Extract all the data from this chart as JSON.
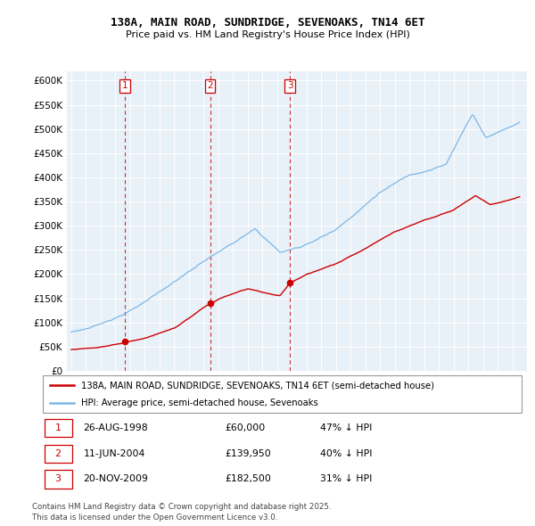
{
  "title_line1": "138A, MAIN ROAD, SUNDRIDGE, SEVENOAKS, TN14 6ET",
  "title_line2": "Price paid vs. HM Land Registry's House Price Index (HPI)",
  "ylabel_ticks": [
    "£0",
    "£50K",
    "£100K",
    "£150K",
    "£200K",
    "£250K",
    "£300K",
    "£350K",
    "£400K",
    "£450K",
    "£500K",
    "£550K",
    "£600K"
  ],
  "ylim": [
    0,
    620000
  ],
  "ytick_vals": [
    0,
    50000,
    100000,
    150000,
    200000,
    250000,
    300000,
    350000,
    400000,
    450000,
    500000,
    550000,
    600000
  ],
  "hpi_color": "#7ab8e8",
  "price_color": "#cc0000",
  "transactions": [
    {
      "num": 1,
      "date_dec": 1998.647,
      "price": 60000
    },
    {
      "num": 2,
      "date_dec": 2004.44,
      "price": 139950
    },
    {
      "num": 3,
      "date_dec": 2009.89,
      "price": 182500
    }
  ],
  "legend_line1": "138A, MAIN ROAD, SUNDRIDGE, SEVENOAKS, TN14 6ET (semi-detached house)",
  "legend_line2": "HPI: Average price, semi-detached house, Sevenoaks",
  "footnote": "Contains HM Land Registry data © Crown copyright and database right 2025.\nThis data is licensed under the Open Government Licence v3.0.",
  "table_rows": [
    {
      "num": 1,
      "date": "26-AUG-1998",
      "amount": "£60,000",
      "pct": "47% ↓ HPI"
    },
    {
      "num": 2,
      "date": "11-JUN-2004",
      "amount": "£139,950",
      "pct": "40% ↓ HPI"
    },
    {
      "num": 3,
      "date": "20-NOV-2009",
      "amount": "£182,500",
      "pct": "31% ↓ HPI"
    }
  ]
}
